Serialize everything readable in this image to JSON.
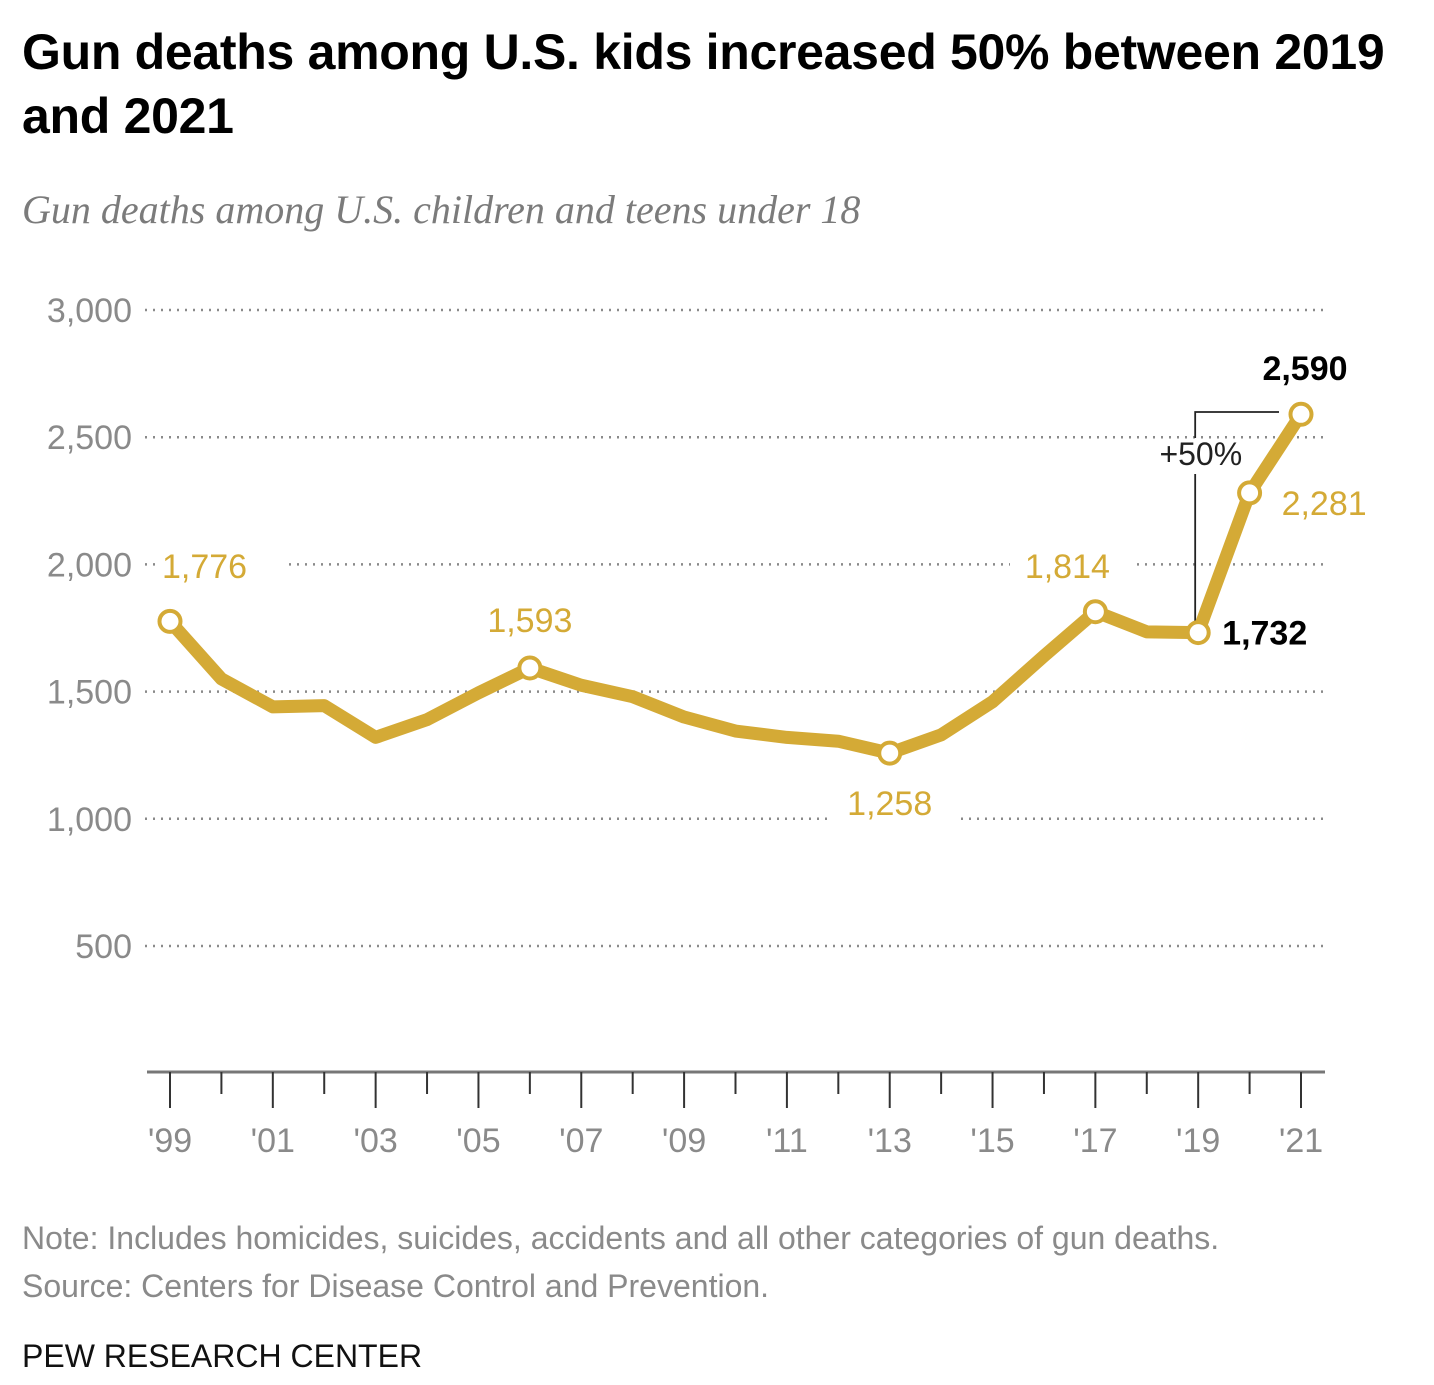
{
  "title": "Gun deaths among U.S. kids increased 50% between 2019 and 2021",
  "subtitle": "Gun deaths among U.S. children and teens under 18",
  "note": "Note: Includes homicides, suicides, accidents and all other categories of gun deaths.",
  "source": "Source: Centers for Disease Control and Prevention.",
  "brand": "PEW RESEARCH CENTER",
  "colors": {
    "line": "#d4aa36",
    "axis": "#8a8a8a",
    "grid": "#8a8a8a",
    "highlight": "#000000"
  },
  "chart_data": {
    "type": "line",
    "title": "Gun deaths among U.S. kids increased 50% between 2019 and 2021",
    "subtitle": "Gun deaths among U.S. children and teens under 18",
    "xlabel": "",
    "ylabel": "",
    "x": [
      1999,
      2000,
      2001,
      2002,
      2003,
      2004,
      2005,
      2006,
      2007,
      2008,
      2009,
      2010,
      2011,
      2012,
      2013,
      2014,
      2015,
      2016,
      2017,
      2018,
      2019,
      2020,
      2021
    ],
    "series": [
      {
        "name": "Gun deaths among U.S. children and teens under 18",
        "values": [
          1776,
          1550,
          1440,
          1445,
          1320,
          1390,
          1495,
          1593,
          1525,
          1480,
          1400,
          1345,
          1320,
          1305,
          1258,
          1330,
          1460,
          1640,
          1814,
          1735,
          1732,
          2281,
          2590
        ]
      }
    ],
    "ylim": [
      0,
      3000
    ],
    "yticks": [
      500,
      1000,
      1500,
      2000,
      2500,
      3000
    ],
    "ytick_labels": [
      "500",
      "1,000",
      "1,500",
      "2,000",
      "2,500",
      "3,000"
    ],
    "xticks_labeled": [
      1999,
      2001,
      2003,
      2005,
      2007,
      2009,
      2011,
      2013,
      2015,
      2017,
      2019,
      2021
    ],
    "xtick_labels": [
      "'99",
      "'01",
      "'03",
      "'05",
      "'07",
      "'09",
      "'11",
      "'13",
      "'15",
      "'17",
      "'19",
      "'21"
    ],
    "grid": "horizontal dotted",
    "legend": "none",
    "markers": [
      {
        "x": 1999,
        "value": 1776,
        "label": "1,776",
        "style": "gold",
        "position": "above-right"
      },
      {
        "x": 2006,
        "value": 1593,
        "label": "1,593",
        "style": "gold",
        "position": "above"
      },
      {
        "x": 2013,
        "value": 1258,
        "label": "1,258",
        "style": "gold",
        "position": "below"
      },
      {
        "x": 2017,
        "value": 1814,
        "label": "1,814",
        "style": "gold",
        "position": "above"
      },
      {
        "x": 2019,
        "value": 1732,
        "label": "1,732",
        "style": "bold",
        "position": "right"
      },
      {
        "x": 2020,
        "value": 2281,
        "label": "2,281",
        "style": "gold",
        "position": "right"
      },
      {
        "x": 2021,
        "value": 2590,
        "label": "2,590",
        "style": "bold",
        "position": "above"
      }
    ],
    "annotations": [
      {
        "text": "+50%",
        "from_x": 2019,
        "to_x": 2021,
        "type": "bracket"
      }
    ]
  }
}
